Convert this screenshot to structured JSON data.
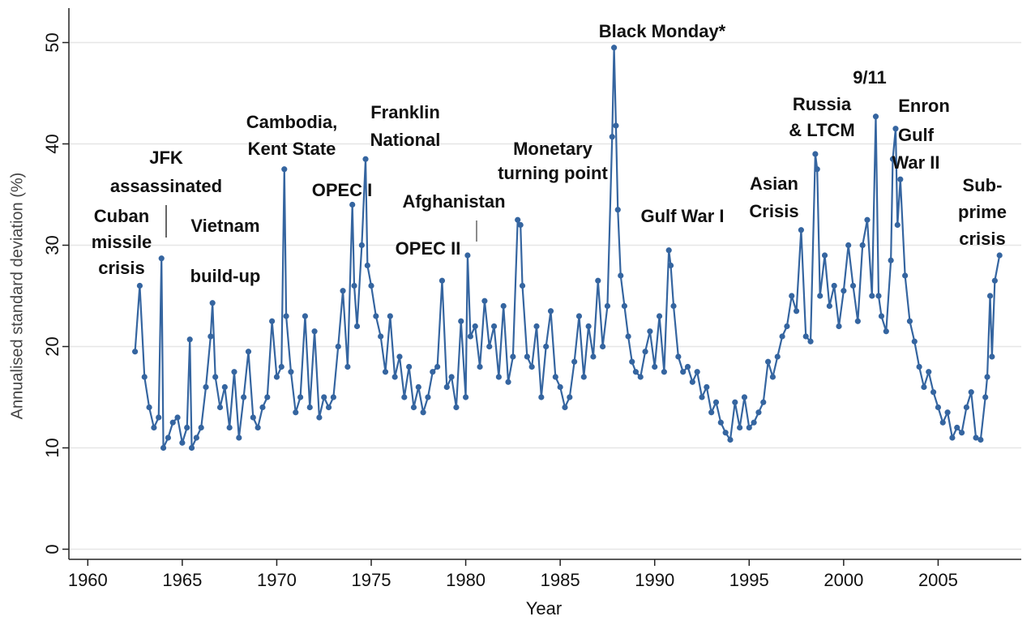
{
  "chart_data": {
    "type": "line",
    "xlabel": "Year",
    "ylabel": "Annualised standard deviation (%)",
    "xlim": [
      1959,
      2009.4
    ],
    "ylim": [
      -1,
      53.4
    ],
    "xticks": [
      1960,
      1965,
      1970,
      1975,
      1980,
      1985,
      1990,
      1995,
      2000,
      2005
    ],
    "yticks": [
      0,
      10,
      20,
      30,
      40,
      50
    ],
    "grid": true,
    "color": "#3565a0",
    "x": [
      1962.5,
      1962.75,
      1963,
      1963.25,
      1963.5,
      1963.75,
      1963.9,
      1964,
      1964.25,
      1964.5,
      1964.75,
      1965,
      1965.25,
      1965.4,
      1965.5,
      1965.75,
      1966,
      1966.25,
      1966.5,
      1966.6,
      1966.75,
      1967,
      1967.25,
      1967.5,
      1967.75,
      1968,
      1968.25,
      1968.5,
      1968.75,
      1969,
      1969.25,
      1969.5,
      1969.75,
      1970,
      1970.25,
      1970.4,
      1970.5,
      1970.75,
      1971,
      1971.25,
      1971.5,
      1971.75,
      1972,
      1972.25,
      1972.5,
      1972.75,
      1973,
      1973.25,
      1973.5,
      1973.75,
      1974,
      1974.1,
      1974.25,
      1974.5,
      1974.7,
      1974.8,
      1975,
      1975.25,
      1975.5,
      1975.75,
      1976,
      1976.25,
      1976.5,
      1976.75,
      1977,
      1977.25,
      1977.5,
      1977.75,
      1978,
      1978.25,
      1978.5,
      1978.75,
      1979,
      1979.25,
      1979.5,
      1979.75,
      1980,
      1980.1,
      1980.25,
      1980.5,
      1980.75,
      1981,
      1981.25,
      1981.5,
      1981.75,
      1982,
      1982.25,
      1982.5,
      1982.75,
      1982.9,
      1983,
      1983.25,
      1983.5,
      1983.75,
      1984,
      1984.25,
      1984.5,
      1984.75,
      1985,
      1985.25,
      1985.5,
      1985.75,
      1986,
      1986.25,
      1986.5,
      1986.75,
      1987,
      1987.25,
      1987.5,
      1987.75,
      1987.85,
      1987.95,
      1988.05,
      1988.2,
      1988.4,
      1988.6,
      1988.8,
      1989,
      1989.25,
      1989.5,
      1989.75,
      1990,
      1990.25,
      1990.5,
      1990.75,
      1990.85,
      1991,
      1991.25,
      1991.5,
      1991.75,
      1992,
      1992.25,
      1992.5,
      1992.75,
      1993,
      1993.25,
      1993.5,
      1993.75,
      1994,
      1994.25,
      1994.5,
      1994.75,
      1995,
      1995.25,
      1995.5,
      1995.75,
      1996,
      1996.25,
      1996.5,
      1996.75,
      1997,
      1997.25,
      1997.5,
      1997.75,
      1998,
      1998.25,
      1998.5,
      1998.6,
      1998.75,
      1999,
      1999.25,
      1999.5,
      1999.75,
      2000,
      2000.25,
      2000.5,
      2000.75,
      2001,
      2001.25,
      2001.5,
      2001.7,
      2001.85,
      2002,
      2002.25,
      2002.5,
      2002.6,
      2002.75,
      2002.85,
      2003,
      2003.25,
      2003.5,
      2003.75,
      2004,
      2004.25,
      2004.5,
      2004.75,
      2005,
      2005.25,
      2005.5,
      2005.75,
      2006,
      2006.25,
      2006.5,
      2006.75,
      2007,
      2007.25,
      2007.5,
      2007.6,
      2007.75,
      2007.85,
      2008,
      2008.25
    ],
    "values": [
      19.5,
      26,
      17,
      14,
      12,
      13,
      28.7,
      10,
      11,
      12.5,
      13,
      10.5,
      12,
      20.7,
      10,
      11,
      12,
      16,
      21,
      24.3,
      17,
      14,
      16,
      12,
      17.5,
      11,
      15,
      19.5,
      13,
      12,
      14,
      15,
      22.5,
      17,
      18,
      37.5,
      23,
      17.5,
      13.5,
      15,
      23,
      14,
      21.5,
      13,
      15,
      14,
      15,
      20,
      25.5,
      18,
      34,
      26,
      22,
      30,
      38.5,
      28,
      26,
      23,
      21,
      17.5,
      23,
      17,
      19,
      15,
      18,
      14,
      16,
      13.5,
      15,
      17.5,
      18,
      26.5,
      16,
      17,
      14,
      22.5,
      15,
      29,
      21,
      22,
      18,
      24.5,
      20,
      22,
      17,
      24,
      16.5,
      19,
      32.5,
      32,
      26,
      19,
      18,
      22,
      15,
      20,
      23.5,
      17,
      16,
      14,
      15,
      18.5,
      23,
      17,
      22,
      19,
      26.5,
      20,
      24,
      40.7,
      49.5,
      41.8,
      33.5,
      27,
      24,
      21,
      18.5,
      17.5,
      17,
      19.5,
      21.5,
      18,
      23,
      17.5,
      29.5,
      28,
      24,
      19,
      17.5,
      18,
      16.5,
      17.5,
      15,
      16,
      13.5,
      14.5,
      12.5,
      11.5,
      10.8,
      14.5,
      12,
      15,
      12,
      12.5,
      13.5,
      14.5,
      18.5,
      17,
      19,
      21,
      22,
      25,
      23.5,
      31.5,
      21,
      20.5,
      39,
      37.5,
      25,
      29,
      24,
      26,
      22,
      25.5,
      30,
      26,
      22.5,
      30,
      32.5,
      25,
      42.7,
      25,
      23,
      21.5,
      28.5,
      38.5,
      41.5,
      32,
      36.5,
      27,
      22.5,
      20.5,
      18,
      16,
      17.5,
      15.5,
      14,
      12.5,
      13.5,
      11,
      12,
      11.5,
      14,
      15.5,
      11,
      10.8,
      15,
      17,
      25,
      19,
      26.5,
      29
    ],
    "annotations": [
      [
        "Cuban",
        "missile",
        "crisis"
      ],
      [
        "JFK",
        "assassinated"
      ],
      [
        "Vietnam",
        "build-up"
      ],
      [
        "Cambodia,",
        "Kent State"
      ],
      [
        "OPEC I"
      ],
      [
        "Franklin",
        "National"
      ],
      [
        "Afghanistan"
      ],
      [
        "OPEC II"
      ],
      [
        "Monetary",
        "turning point"
      ],
      [
        "Black Monday*"
      ],
      [
        "Gulf War I"
      ],
      [
        "Asian",
        "Crisis"
      ],
      [
        "Russia",
        "& LTCM"
      ],
      [
        "9/11"
      ],
      [
        "Enron"
      ],
      [
        "Gulf",
        "War II"
      ],
      [
        "Sub-",
        "prime",
        "crisis"
      ]
    ]
  }
}
